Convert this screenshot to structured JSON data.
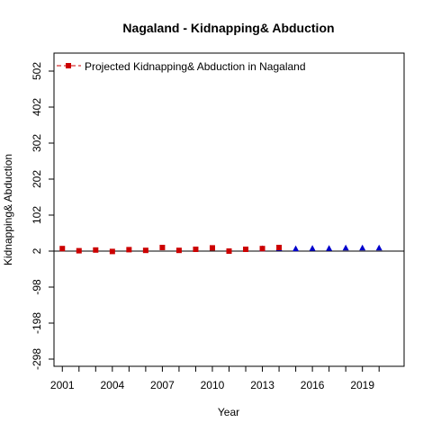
{
  "chart_data": {
    "type": "scatter",
    "title": "Nagaland  -  Kidnapping& Abduction",
    "xlabel": "Year",
    "ylabel": "Kidnapping& Abduction",
    "xlim": [
      2000.5,
      2021.5
    ],
    "ylim": [
      -318,
      552
    ],
    "x_ticks": [
      2001,
      2004,
      2007,
      2010,
      2013,
      2016,
      2019
    ],
    "x_minor_ticks": [
      2001,
      2002,
      2003,
      2004,
      2005,
      2006,
      2007,
      2008,
      2009,
      2010,
      2011,
      2012,
      2013,
      2014,
      2015,
      2016,
      2017,
      2018,
      2019,
      2020
    ],
    "y_ticks": [
      -298,
      -198,
      -98,
      2,
      102,
      202,
      302,
      402,
      502
    ],
    "y_tick_labels": [
      "-298",
      "-198",
      "-98",
      "2",
      "102",
      "202",
      "302",
      "402",
      "502"
    ],
    "grid": false,
    "legend": {
      "position": "top-left",
      "entries": [
        {
          "label": "Projected  Kidnapping& Abduction  in  Nagaland",
          "marker": "square",
          "color": "#cc0000",
          "line": "dashed"
        }
      ]
    },
    "reference_line": {
      "y": 2,
      "color": "#000000"
    },
    "series": [
      {
        "name": "Projected  Kidnapping& Abduction  in  Nagaland",
        "marker": "square",
        "color": "#cc0000",
        "x": [
          2001,
          2002,
          2003,
          2004,
          2005,
          2006,
          2007,
          2008,
          2009,
          2010,
          2011,
          2012
        ],
        "y": [
          9,
          3,
          5,
          1,
          6,
          4,
          12,
          4,
          7,
          11,
          2,
          7
        ]
      },
      {
        "marker": "triangle",
        "color": "#0000cc",
        "x": [
          2013,
          2014,
          2015,
          2016,
          2017,
          2018,
          2019,
          2020
        ],
        "y": [
          8,
          9,
          8,
          9,
          9,
          10,
          10,
          10
        ]
      }
    ],
    "overlay_markers": [
      {
        "marker": "square",
        "color": "#cc0000",
        "x": 2013,
        "y": 9
      },
      {
        "marker": "square",
        "color": "#cc0000",
        "x": 2014,
        "y": 12
      }
    ]
  }
}
